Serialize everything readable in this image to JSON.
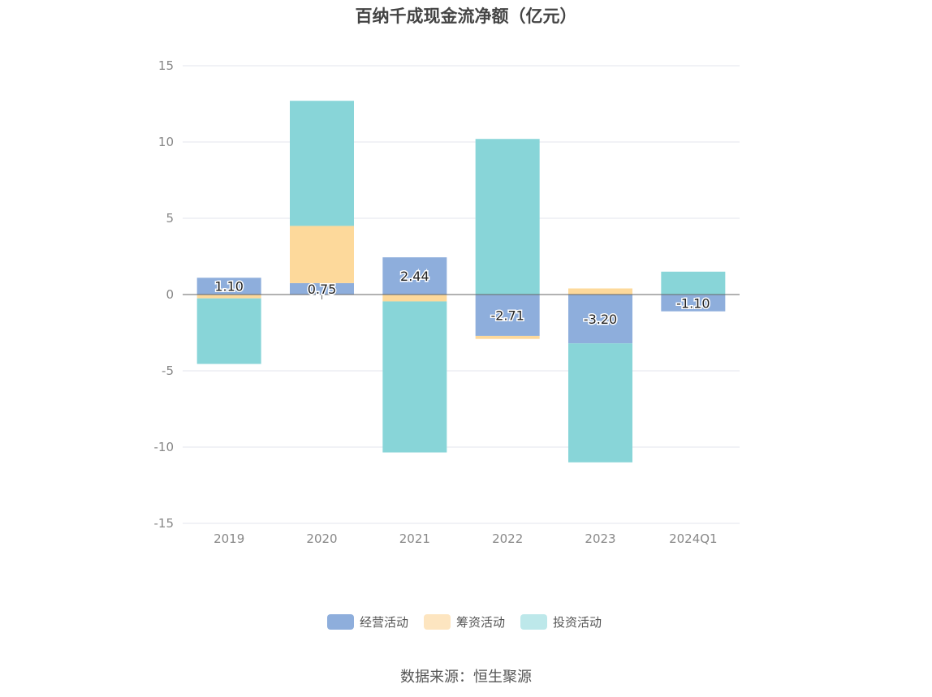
{
  "chart_data": {
    "type": "bar",
    "stacked": true,
    "title": "百纳千成现金流净额（亿元）",
    "categories": [
      "2019",
      "2020",
      "2021",
      "2022",
      "2023",
      "2024Q1"
    ],
    "ylim": [
      -15,
      15
    ],
    "yticks": [
      15,
      10,
      5,
      0,
      -5,
      -10,
      -15
    ],
    "grid": true,
    "legend_position": "bottom",
    "series": [
      {
        "name": "经营活动",
        "color": "#8eaedc",
        "values": [
          1.1,
          0.75,
          2.44,
          -2.71,
          -3.2,
          -1.1
        ],
        "labels": [
          "1.10",
          "0.75",
          "2.44",
          "-2.71",
          "-3.20",
          "-1.10"
        ]
      },
      {
        "name": "筹资活动",
        "color": "#fdd99b",
        "values": [
          -0.25,
          3.75,
          -0.45,
          -0.2,
          0.4,
          0.0
        ]
      },
      {
        "name": "投资活动",
        "color": "#88d5d8",
        "values": [
          -4.3,
          8.2,
          -9.9,
          10.2,
          -7.8,
          1.5
        ]
      }
    ]
  },
  "source": "数据来源：恒生聚源"
}
